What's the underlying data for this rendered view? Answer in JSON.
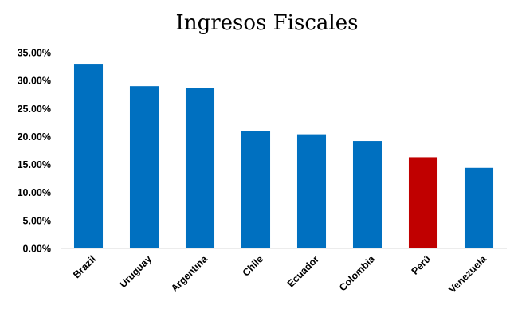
{
  "chart_data": {
    "type": "bar",
    "title": "Ingresos Fiscales",
    "xlabel": "",
    "ylabel": "",
    "categories": [
      "Brazil",
      "Uruguay",
      "Argentina",
      "Chile",
      "Ecuador",
      "Colombia",
      "Perú",
      "Venezuela"
    ],
    "values": [
      33.0,
      29.0,
      28.6,
      21.0,
      20.4,
      19.2,
      16.3,
      14.4
    ],
    "ylim": [
      0,
      35
    ],
    "yticks": [
      "0.00%",
      "5.00%",
      "10.00%",
      "15.00%",
      "20.00%",
      "25.00%",
      "30.00%",
      "35.00%"
    ],
    "grid": false,
    "legend": "none",
    "colors": {
      "default": "#0070c0",
      "highlight": "#c00000",
      "highlight_category": "Perú"
    }
  }
}
